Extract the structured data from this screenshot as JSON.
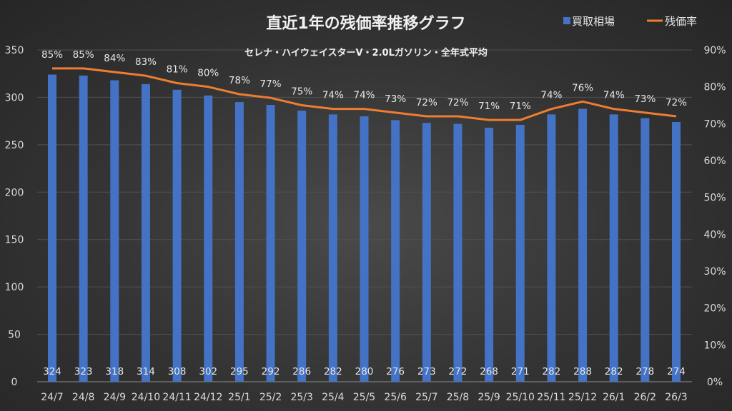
{
  "chart_data": {
    "type": "bar+line",
    "title": "直近1年の残価率推移グラフ",
    "subtitle": "セレナ・ハイウェイスターV・2.0Lガソリン・全年式平均",
    "categories": [
      "24/7",
      "24/8",
      "24/9",
      "24/10",
      "24/11",
      "24/12",
      "25/1",
      "25/2",
      "25/3",
      "25/4",
      "25/5",
      "25/6",
      "25/7",
      "25/8",
      "25/9",
      "25/10",
      "25/11",
      "25/12",
      "26/1",
      "26/2",
      "26/3"
    ],
    "series": [
      {
        "name": "買取相場",
        "type": "bar",
        "axis": "left",
        "color": "#4472c4",
        "values": [
          324,
          323,
          318,
          314,
          308,
          302,
          295,
          292,
          286,
          282,
          280,
          276,
          273,
          272,
          268,
          271,
          282,
          288,
          282,
          278,
          274
        ]
      },
      {
        "name": "残価率",
        "type": "line",
        "axis": "right",
        "color": "#ed7d31",
        "values": [
          85,
          85,
          84,
          83,
          81,
          80,
          78,
          77,
          75,
          74,
          74,
          73,
          72,
          72,
          71,
          71,
          74,
          76,
          74,
          73,
          72
        ]
      }
    ],
    "left_axis": {
      "min": 0,
      "max": 350,
      "step": 50,
      "ticks": [
        "0",
        "50",
        "100",
        "150",
        "200",
        "250",
        "300",
        "350"
      ]
    },
    "right_axis": {
      "min": 0,
      "max": 90,
      "step": 10,
      "ticks": [
        "0%",
        "10%",
        "20%",
        "30%",
        "40%",
        "50%",
        "60%",
        "70%",
        "80%",
        "90%"
      ]
    },
    "grid": true,
    "legend": "top-right"
  }
}
